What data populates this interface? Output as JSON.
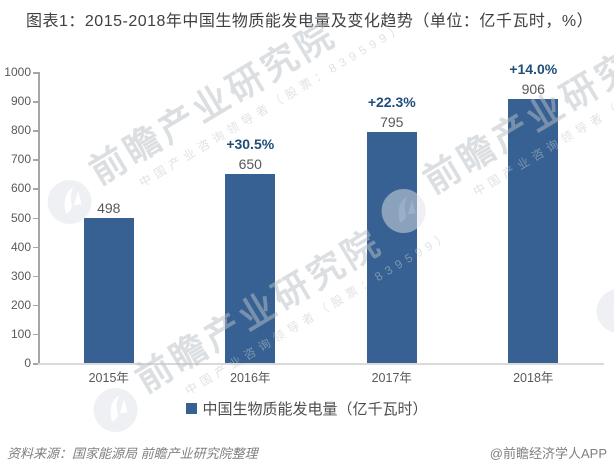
{
  "title": "图表1：2015-2018年中国生物质能发电量及变化趋势（单位：亿千瓦时，%）",
  "chart_data": {
    "type": "bar",
    "categories": [
      "2015年",
      "2016年",
      "2017年",
      "2018年"
    ],
    "series": [
      {
        "name": "中国生物质能发电量（亿千瓦时）",
        "values": [
          498,
          650,
          795,
          906
        ]
      }
    ],
    "value_labels": [
      "498",
      "650",
      "795",
      "906"
    ],
    "growth_labels": [
      "",
      "+30.5%",
      "+22.3%",
      "+14.0%"
    ],
    "ylim": [
      0,
      1000
    ],
    "yticks": [
      0,
      100,
      200,
      300,
      400,
      500,
      600,
      700,
      800,
      900,
      1000
    ],
    "grid": false,
    "legend_position": "bottom",
    "colors": {
      "bar": "#366192",
      "growth_label": "#1F4E79",
      "value_label": "#595959",
      "axis_text": "#595959"
    }
  },
  "legend": {
    "label": "中国生物质能发电量（亿千瓦时）"
  },
  "footer": {
    "source": "资料来源：国家能源局 前瞻产业研究院整理",
    "credit": "@前瞻经济学人APP"
  },
  "watermark": {
    "text": "前瞻产业研究院",
    "subtext": "中国产业咨询领导者（股票：839599）"
  }
}
